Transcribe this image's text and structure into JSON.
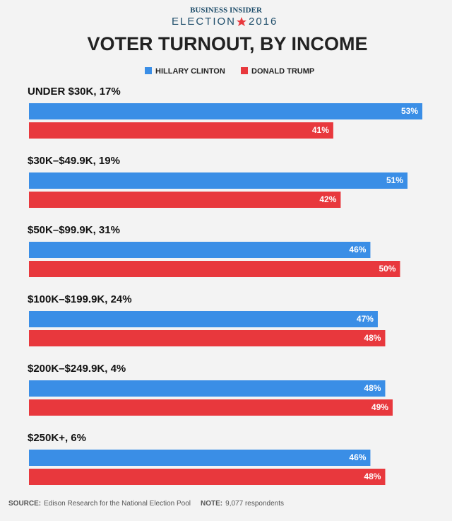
{
  "header": {
    "brand": "BUSINESS INSIDER",
    "election": "ELECTION",
    "year": "2016"
  },
  "chart_data": {
    "type": "bar",
    "orientation": "horizontal",
    "title": "VOTER TURNOUT, BY INCOME",
    "categories": [
      "UNDER $30K, 17%",
      "$30K–$49.9K, 19%",
      "$50K–$99.9K, 31%",
      "$100K–$199.9K, 24%",
      "$200K–$249.9K, 4%",
      "$250K+, 6%"
    ],
    "series": [
      {
        "name": "HILLARY CLINTON",
        "color": "#3a8ee6",
        "values": [
          53,
          51,
          46,
          47,
          48,
          46
        ],
        "value_labels": [
          "53%",
          "51%",
          "46%",
          "47%",
          "48%",
          "46%"
        ]
      },
      {
        "name": "DONALD TRUMP",
        "color": "#e8383d",
        "values": [
          41,
          42,
          50,
          48,
          49,
          48
        ],
        "value_labels": [
          "41%",
          "42%",
          "50%",
          "48%",
          "49%",
          "48%"
        ]
      }
    ]
  },
  "footer": {
    "source_label": "SOURCE:",
    "source": "Edison Research for the National Election Pool",
    "note_label": "NOTE:",
    "note": "9,077 respondents"
  }
}
